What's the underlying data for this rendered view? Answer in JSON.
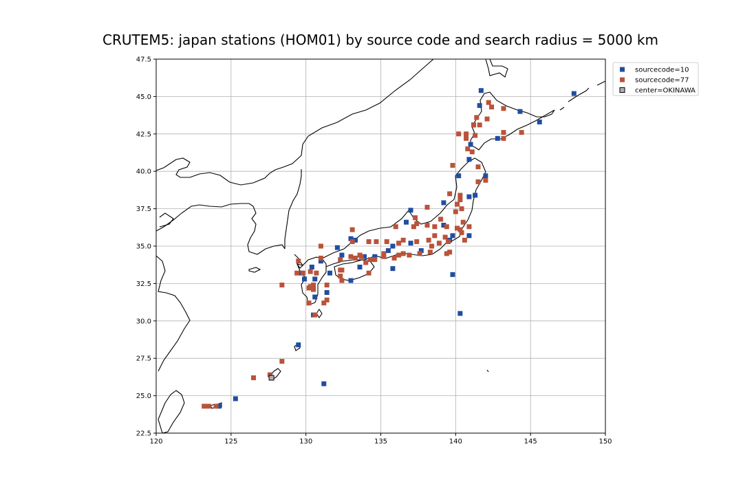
{
  "chart_data": {
    "type": "scatter",
    "title": "CRUTEM5: japan stations (HOM01) by source code and search radius = 5000 km",
    "xlabel": "",
    "ylabel": "",
    "xlim": [
      120,
      150
    ],
    "ylim": [
      22.5,
      47.5
    ],
    "xticks": [
      "120",
      "125",
      "130",
      "135",
      "140",
      "145",
      "150"
    ],
    "yticks": [
      "22.5",
      "25.0",
      "27.5",
      "30.0",
      "32.5",
      "35.0",
      "37.5",
      "40.0",
      "42.5",
      "45.0",
      "47.5"
    ],
    "grid": true,
    "legend_position": "top-right, outside plot",
    "series": [
      {
        "name": "sourcecode=10",
        "color": "#1f4ea1",
        "points": [
          [
            141.7,
            45.4
          ],
          [
            141.6,
            44.4
          ],
          [
            144.3,
            44.0
          ],
          [
            145.6,
            43.3
          ],
          [
            147.9,
            45.2
          ],
          [
            141.2,
            43.1
          ],
          [
            142.8,
            42.2
          ],
          [
            141.0,
            41.8
          ],
          [
            140.9,
            40.8
          ],
          [
            140.2,
            39.7
          ],
          [
            142.0,
            39.7
          ],
          [
            141.3,
            38.4
          ],
          [
            140.9,
            38.3
          ],
          [
            139.2,
            37.9
          ],
          [
            137.0,
            37.4
          ],
          [
            136.7,
            36.6
          ],
          [
            139.2,
            36.4
          ],
          [
            140.9,
            35.7
          ],
          [
            139.8,
            35.7
          ],
          [
            139.6,
            35.4
          ],
          [
            137.0,
            35.2
          ],
          [
            135.8,
            35.0
          ],
          [
            135.5,
            34.7
          ],
          [
            137.7,
            34.7
          ],
          [
            135.8,
            33.5
          ],
          [
            134.6,
            34.3
          ],
          [
            133.9,
            34.3
          ],
          [
            133.0,
            35.5
          ],
          [
            133.3,
            35.4
          ],
          [
            132.1,
            34.9
          ],
          [
            132.4,
            34.4
          ],
          [
            131.0,
            34.0
          ],
          [
            130.4,
            33.6
          ],
          [
            129.7,
            33.2
          ],
          [
            129.9,
            32.8
          ],
          [
            130.6,
            32.8
          ],
          [
            131.6,
            33.2
          ],
          [
            131.4,
            31.9
          ],
          [
            130.6,
            31.6
          ],
          [
            133.0,
            32.7
          ],
          [
            133.6,
            33.6
          ],
          [
            130.5,
            30.4
          ],
          [
            129.5,
            28.4
          ],
          [
            127.7,
            26.2
          ],
          [
            124.2,
            24.3
          ],
          [
            125.3,
            24.8
          ],
          [
            131.2,
            25.8
          ],
          [
            139.8,
            33.1
          ],
          [
            140.3,
            30.5
          ]
        ]
      },
      {
        "name": "sourcecode=77",
        "color": "#b9533a",
        "points": [
          [
            142.4,
            44.3
          ],
          [
            142.2,
            44.6
          ],
          [
            143.2,
            44.2
          ],
          [
            142.1,
            43.5
          ],
          [
            141.4,
            43.6
          ],
          [
            141.2,
            43.1
          ],
          [
            141.6,
            43.1
          ],
          [
            143.2,
            42.6
          ],
          [
            144.4,
            42.6
          ],
          [
            143.2,
            42.2
          ],
          [
            140.2,
            42.5
          ],
          [
            140.7,
            42.5
          ],
          [
            141.3,
            42.4
          ],
          [
            140.7,
            42.2
          ],
          [
            141.1,
            41.3
          ],
          [
            140.8,
            41.5
          ],
          [
            141.5,
            40.3
          ],
          [
            139.8,
            40.4
          ],
          [
            141.5,
            39.3
          ],
          [
            142.0,
            39.4
          ],
          [
            140.3,
            38.4
          ],
          [
            140.3,
            38.1
          ],
          [
            140.1,
            37.8
          ],
          [
            140.4,
            37.5
          ],
          [
            139.6,
            38.5
          ],
          [
            140.0,
            37.3
          ],
          [
            138.1,
            37.6
          ],
          [
            137.3,
            36.9
          ],
          [
            139.0,
            36.8
          ],
          [
            136.0,
            36.3
          ],
          [
            137.2,
            36.3
          ],
          [
            137.4,
            36.5
          ],
          [
            138.1,
            36.4
          ],
          [
            138.6,
            36.3
          ],
          [
            139.4,
            36.3
          ],
          [
            140.5,
            36.6
          ],
          [
            140.9,
            36.3
          ],
          [
            140.3,
            36.1
          ],
          [
            140.4,
            35.9
          ],
          [
            139.3,
            35.6
          ],
          [
            138.6,
            35.7
          ],
          [
            138.9,
            35.2
          ],
          [
            140.6,
            35.4
          ],
          [
            139.5,
            35.3
          ],
          [
            138.2,
            35.4
          ],
          [
            138.4,
            35.0
          ],
          [
            138.3,
            34.6
          ],
          [
            137.6,
            34.5
          ],
          [
            136.9,
            34.4
          ],
          [
            136.5,
            34.5
          ],
          [
            136.2,
            34.4
          ],
          [
            135.9,
            34.2
          ],
          [
            137.4,
            35.3
          ],
          [
            136.5,
            35.4
          ],
          [
            136.2,
            35.2
          ],
          [
            135.4,
            35.3
          ],
          [
            134.7,
            35.3
          ],
          [
            134.2,
            35.3
          ],
          [
            135.2,
            34.3
          ],
          [
            135.2,
            34.5
          ],
          [
            134.6,
            34.1
          ],
          [
            134.3,
            34.1
          ],
          [
            134.0,
            33.9
          ],
          [
            133.7,
            34.3
          ],
          [
            133.6,
            34.4
          ],
          [
            133.3,
            34.2
          ],
          [
            133.0,
            34.3
          ],
          [
            133.1,
            35.3
          ],
          [
            133.1,
            36.1
          ],
          [
            132.3,
            34.1
          ],
          [
            132.4,
            33.4
          ],
          [
            132.3,
            33.0
          ],
          [
            132.4,
            32.7
          ],
          [
            132.3,
            33.4
          ],
          [
            131.0,
            35.0
          ],
          [
            131.0,
            34.2
          ],
          [
            130.7,
            33.2
          ],
          [
            130.3,
            33.3
          ],
          [
            129.8,
            33.2
          ],
          [
            129.4,
            33.2
          ],
          [
            129.5,
            34.0
          ],
          [
            130.5,
            32.4
          ],
          [
            130.2,
            32.2
          ],
          [
            130.3,
            32.3
          ],
          [
            130.5,
            32.1
          ],
          [
            131.4,
            32.4
          ],
          [
            131.4,
            31.4
          ],
          [
            131.2,
            31.2
          ],
          [
            130.2,
            31.2
          ],
          [
            130.6,
            30.4
          ],
          [
            128.4,
            32.4
          ],
          [
            128.4,
            27.3
          ],
          [
            127.6,
            26.4
          ],
          [
            126.5,
            26.2
          ],
          [
            124.0,
            24.3
          ],
          [
            123.2,
            24.3
          ],
          [
            123.5,
            24.3
          ],
          [
            134.2,
            33.2
          ],
          [
            139.6,
            34.6
          ],
          [
            139.4,
            34.5
          ],
          [
            140.1,
            36.2
          ]
        ]
      },
      {
        "name": "center=OKINAWA",
        "color": "#b0b0b0",
        "points": [
          [
            127.7,
            26.2
          ]
        ]
      }
    ]
  }
}
